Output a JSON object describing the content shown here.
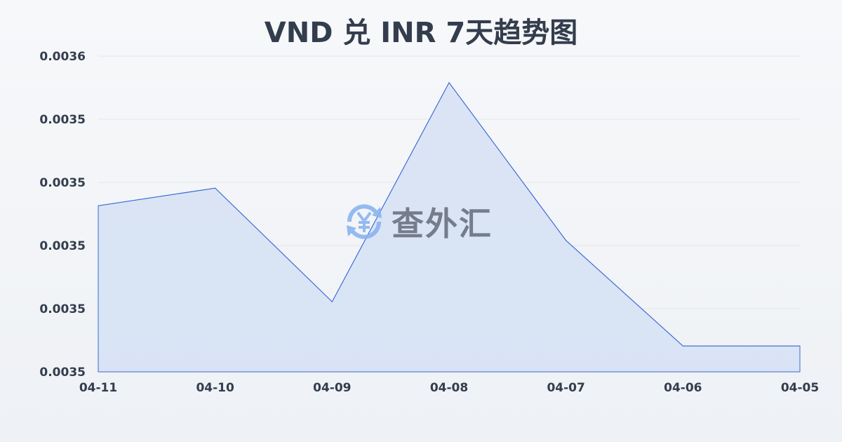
{
  "chart_data": {
    "type": "area",
    "title": "VND 兑 INR 7天趋势图",
    "categories": [
      "04-11",
      "04-10",
      "04-09",
      "04-08",
      "04-07",
      "04-06",
      "04-05"
    ],
    "values": [
      0.0035263,
      0.0035291,
      0.0035111,
      0.0035458,
      0.0035208,
      0.0035041,
      0.0035041
    ],
    "ylim": [
      0.0035,
      0.00355
    ],
    "yticks": [
      0.0035,
      0.00351,
      0.00352,
      0.00353,
      0.00354,
      0.00355
    ],
    "ytick_labels": [
      "0.0035",
      "0.0035",
      "0.0035",
      "0.0035",
      "0.0035",
      "0.0036"
    ],
    "grid": true,
    "line_color": "#3a6bd4",
    "fill_color": "#d5e0f5"
  },
  "watermark": {
    "text": "查外汇",
    "icon": "yen-exchange-icon",
    "icon_color": "#8ab4f0"
  }
}
